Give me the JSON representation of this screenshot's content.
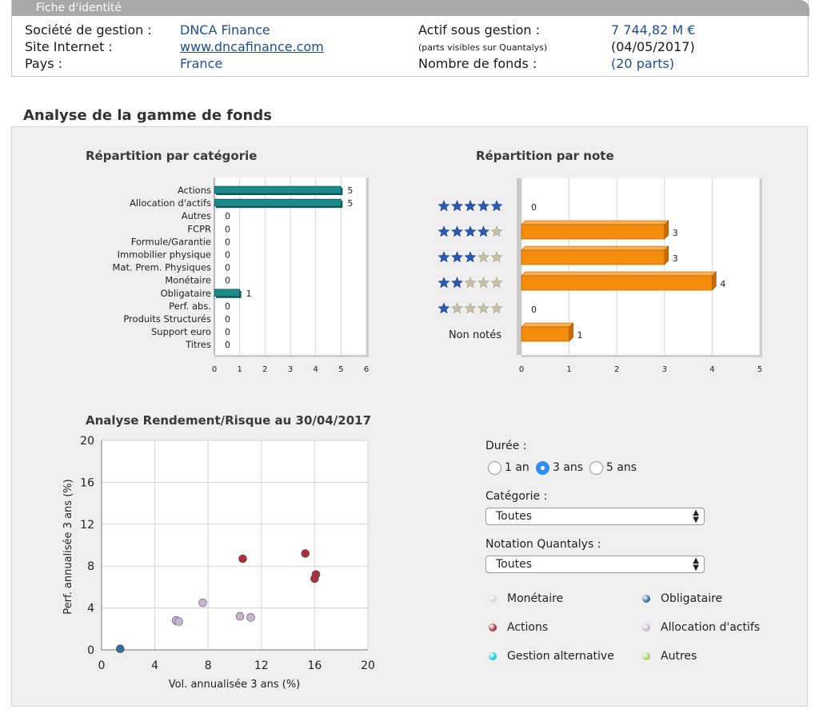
{
  "identity": {
    "tab_title": "Fiche d'identité",
    "societe_label": "Société de gestion :",
    "societe_value": "DNCA Finance",
    "site_label": "Site Internet :",
    "site_value": "www.dncafinance.com",
    "pays_label": "Pays :",
    "pays_value": "France",
    "actif_label": "Actif sous gestion :",
    "actif_value": "7 744,82 M €",
    "actif_note": "(parts visibles sur Quantalys)",
    "actif_date": "(04/05/2017)",
    "nb_fonds_label": "Nombre de fonds :",
    "nb_fonds_value": "(20 parts)"
  },
  "section_title": "Analyse de la gamme de fonds",
  "cat_chart_title": "Répartition par catégorie",
  "note_chart_title": "Répartition par note",
  "scatter_title": "Analyse Rendement/Risque au 30/04/2017",
  "controls": {
    "duree_label": "Durée :",
    "duree_options": [
      "1 an",
      "3 ans",
      "5 ans"
    ],
    "duree_selected": 1,
    "categorie_label": "Catégorie :",
    "categorie_value": "Toutes",
    "notation_label": "Notation Quantalys :",
    "notation_value": "Toutes"
  },
  "legend": [
    {
      "label": "Monétaire",
      "color": "#d8d8d8"
    },
    {
      "label": "Obligataire",
      "color": "#2f6f9a"
    },
    {
      "label": "Actions",
      "color": "#a8323a"
    },
    {
      "label": "Allocation d'actifs",
      "color": "#c8b4d0"
    },
    {
      "label": "Gestion alternative",
      "color": "#18c8d8"
    },
    {
      "label": "Autres",
      "color": "#a8d070"
    }
  ],
  "colors": {
    "cat_bar": "#1a8a8a",
    "note_bar": "#f48c0c",
    "star_filled": "#2a5bb0",
    "star_empty": "#c9c0a8"
  },
  "chart_data": [
    {
      "type": "bar",
      "orientation": "horizontal",
      "title": "Répartition par catégorie",
      "categories": [
        "Actions",
        "Allocation d'actifs",
        "Autres",
        "FCPR",
        "Formule/Garantie",
        "Immobilier physique",
        "Mat. Prem. Physiques",
        "Monétaire",
        "Obligataire",
        "Perf. abs.",
        "Produits Structurés",
        "Support euro",
        "Titres"
      ],
      "values": [
        5,
        5,
        0,
        0,
        0,
        0,
        0,
        0,
        1,
        0,
        0,
        0,
        0
      ],
      "xlim": [
        0,
        6
      ],
      "xticks": [
        0,
        1,
        2,
        3,
        4,
        5,
        6
      ],
      "grid": true
    },
    {
      "type": "bar",
      "orientation": "horizontal",
      "title": "Répartition par note",
      "categories": [
        "5 étoiles",
        "4 étoiles",
        "3 étoiles",
        "2 étoiles",
        "1 étoile",
        "Non notés"
      ],
      "stars": [
        5,
        4,
        3,
        2,
        1,
        0
      ],
      "text_label": "Non notés",
      "values": [
        0,
        3,
        3,
        4,
        0,
        1
      ],
      "xlim": [
        0,
        5
      ],
      "xticks": [
        0,
        1,
        2,
        3,
        4,
        5
      ],
      "grid": true
    },
    {
      "type": "scatter",
      "title": "Analyse Rendement/Risque au 30/04/2017",
      "xlabel": "Vol. annualisée 3 ans (%)",
      "ylabel": "Perf. annualisée 3 ans (%)",
      "xlim": [
        0,
        20
      ],
      "ylim": [
        0,
        20
      ],
      "xticks": [
        0,
        4,
        8,
        12,
        16,
        20
      ],
      "yticks": [
        0,
        4,
        8,
        12,
        16,
        20
      ],
      "grid": true,
      "series": [
        {
          "name": "Obligataire",
          "color": "#2f6f9a",
          "points": [
            [
              1.4,
              0.1
            ]
          ]
        },
        {
          "name": "Actions",
          "color": "#a8323a",
          "points": [
            [
              10.6,
              8.7
            ],
            [
              15.3,
              9.2
            ],
            [
              16.1,
              7.2
            ],
            [
              16.0,
              6.8
            ]
          ]
        },
        {
          "name": "Allocation d'actifs",
          "color": "#c8b4d0",
          "points": [
            [
              5.6,
              2.8
            ],
            [
              5.8,
              2.7
            ],
            [
              7.6,
              4.5
            ],
            [
              10.4,
              3.2
            ],
            [
              11.2,
              3.1
            ]
          ]
        }
      ]
    }
  ]
}
